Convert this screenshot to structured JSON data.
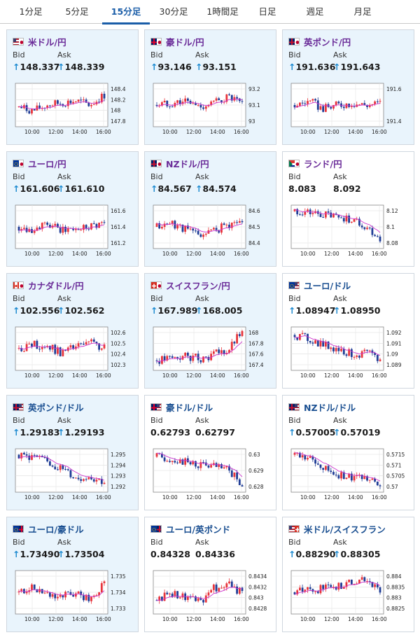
{
  "tabs": [
    {
      "label": "1分足",
      "active": false
    },
    {
      "label": "5分足",
      "active": false
    },
    {
      "label": "15分足",
      "active": true
    },
    {
      "label": "30分足",
      "active": false
    },
    {
      "label": "1時間足",
      "active": false
    },
    {
      "label": "日足",
      "active": false
    },
    {
      "label": "週足",
      "active": false
    },
    {
      "label": "月足",
      "active": false
    }
  ],
  "labels": {
    "bid": "Bid",
    "ask": "Ask"
  },
  "x_ticks": [
    "10:00",
    "12:00",
    "14:00",
    "16:00"
  ],
  "cards": [
    {
      "pair": "米ドル/円",
      "flag": "us-jp-flag-icon",
      "bid": "148.337",
      "ask": "148.339",
      "bid_up": true,
      "ask_up": true,
      "y_ticks": [
        "148.4",
        "148.2",
        "148",
        "147.8"
      ]
    },
    {
      "pair": "豪ドル/円",
      "flag": "au-jp-flag-icon",
      "bid": "93.146",
      "ask": "93.151",
      "bid_up": true,
      "ask_up": true,
      "y_ticks": [
        "93.2",
        "93.1",
        "93"
      ]
    },
    {
      "pair": "英ポンド/円",
      "flag": "gb-jp-flag-icon",
      "bid": "191.636",
      "ask": "191.643",
      "bid_up": true,
      "ask_up": true,
      "y_ticks": [
        "191.6",
        "191.4"
      ]
    },
    {
      "pair": "ユーロ/円",
      "flag": "eu-jp-flag-icon",
      "bid": "161.606",
      "ask": "161.610",
      "bid_up": true,
      "ask_up": true,
      "y_ticks": [
        "161.6",
        "161.4",
        "161.2"
      ]
    },
    {
      "pair": "NZドル/円",
      "flag": "nz-jp-flag-icon",
      "bid": "84.567",
      "ask": "84.574",
      "bid_up": true,
      "ask_up": true,
      "y_ticks": [
        "84.6",
        "84.5",
        "84.4"
      ]
    },
    {
      "pair": "ランド/円",
      "flag": "za-jp-flag-icon",
      "bid": "8.083",
      "ask": "8.092",
      "bid_up": false,
      "ask_up": false,
      "y_ticks": [
        "8.12",
        "8.1",
        "8.08"
      ]
    },
    {
      "pair": "カナダドル/円",
      "flag": "ca-jp-flag-icon",
      "bid": "102.556",
      "ask": "102.562",
      "bid_up": true,
      "ask_up": true,
      "y_ticks": [
        "102.6",
        "102.5",
        "102.4",
        "102.3"
      ]
    },
    {
      "pair": "スイスフラン/円",
      "flag": "ch-jp-flag-icon",
      "bid": "167.989",
      "ask": "168.005",
      "bid_up": true,
      "ask_up": true,
      "y_ticks": [
        "168",
        "167.8",
        "167.6",
        "167.4"
      ]
    },
    {
      "pair": "ユーロ/ドル",
      "flag": "eu-us-flag-icon",
      "bid": "1.08947",
      "ask": "1.08950",
      "bid_up": true,
      "ask_up": true,
      "y_ticks": [
        "1.092",
        "1.091",
        "1.09",
        "1.089"
      ]
    },
    {
      "pair": "英ポンド/ドル",
      "flag": "gb-us-flag-icon",
      "bid": "1.29183",
      "ask": "1.29193",
      "bid_up": true,
      "ask_up": true,
      "y_ticks": [
        "1.295",
        "1.294",
        "1.293",
        "1.292"
      ]
    },
    {
      "pair": "豪ドル/ドル",
      "flag": "au-us-flag-icon",
      "bid": "0.62793",
      "ask": "0.62797",
      "bid_up": false,
      "ask_up": false,
      "y_ticks": [
        "0.63",
        "0.629",
        "0.628"
      ]
    },
    {
      "pair": "NZドル/ドル",
      "flag": "nz-us-flag-icon",
      "bid": "0.57005",
      "ask": "0.57019",
      "bid_up": true,
      "ask_up": true,
      "y_ticks": [
        "0.5715",
        "0.571",
        "0.5705",
        "0.57"
      ]
    },
    {
      "pair": "ユーロ/豪ドル",
      "flag": "eu-au-flag-icon",
      "bid": "1.73490",
      "ask": "1.73504",
      "bid_up": true,
      "ask_up": true,
      "y_ticks": [
        "1.735",
        "1.734",
        "1.733"
      ]
    },
    {
      "pair": "ユーロ/英ポンド",
      "flag": "eu-gb-flag-icon",
      "bid": "0.84328",
      "ask": "0.84336",
      "bid_up": false,
      "ask_up": false,
      "y_ticks": [
        "0.8434",
        "0.8432",
        "0.843",
        "0.8428"
      ]
    },
    {
      "pair": "米ドル/スイスフラン",
      "flag": "us-ch-flag-icon",
      "bid": "0.88290",
      "ask": "0.88305",
      "bid_up": true,
      "ask_up": true,
      "y_ticks": [
        "0.884",
        "0.8835",
        "0.883",
        "0.8825"
      ]
    }
  ],
  "colors": {
    "up": "#e8343b",
    "down": "#1f3c96",
    "ma": "#cc33cc",
    "accent": "#1a5da8",
    "card_bg": "#e9f4fc"
  }
}
